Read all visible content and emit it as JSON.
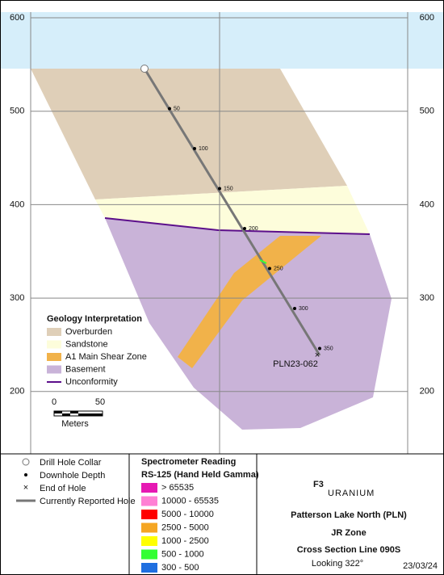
{
  "elevation_ticks": [
    600,
    500,
    400,
    300,
    200
  ],
  "drill_hole": {
    "name": "PLN23-062",
    "depth_labels": [
      50,
      100,
      150,
      200,
      250,
      300,
      350
    ]
  },
  "legend": {
    "title": "Geology Interpretation",
    "items": [
      {
        "label": "Overburden",
        "color": "#dfcfb8",
        "kind": "box"
      },
      {
        "label": "Sandstone",
        "color": "#fdfddb",
        "kind": "box"
      },
      {
        "label": "A1 Main Shear Zone",
        "color": "#f1b24a",
        "kind": "box"
      },
      {
        "label": "Basement",
        "color": "#c9b3d8",
        "kind": "box"
      },
      {
        "label": "Unconformity",
        "color": "#5c0f8b",
        "kind": "line"
      }
    ]
  },
  "scale_bar": {
    "labels": [
      0,
      50
    ],
    "unit": "Meters"
  },
  "symbols": [
    "Drill Hole Collar",
    "Downhole Depth",
    "End of Hole",
    "Currently Reported Hole"
  ],
  "spectrometer": {
    "title": "Spectrometer Reading",
    "subtitle": "RS-125 (Hand Held Gamma)",
    "ranges": [
      {
        "label": "> 65535",
        "color": "#e619b3"
      },
      {
        "label": "10000 - 65535",
        "color": "#ff80d4"
      },
      {
        "label": "5000 - 10000",
        "color": "#ff0000"
      },
      {
        "label": "2500 - 5000",
        "color": "#f5a623"
      },
      {
        "label": "1000 - 2500",
        "color": "#ffff00"
      },
      {
        "label": "500 - 1000",
        "color": "#33ff33"
      },
      {
        "label": "300 - 500",
        "color": "#1f6fe0"
      }
    ]
  },
  "logo": {
    "mark": "F3",
    "name": "URANIUM"
  },
  "title_block": {
    "project": "Patterson Lake North (PLN)",
    "zone": "JR Zone",
    "section": "Cross Section Line 090S",
    "looking": "Looking 322°",
    "date": "23/03/24"
  }
}
